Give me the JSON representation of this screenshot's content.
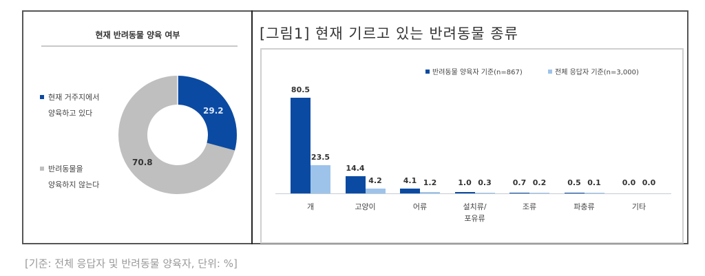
{
  "left_panel": {
    "title": "현재 반려동물 양육 여부",
    "legend": [
      {
        "line1": "현재 거주지에서",
        "line2": "양육하고 있다",
        "color": "#0b4aa2"
      },
      {
        "line1": "반려동물을",
        "line2": "양육하지 않는다",
        "color": "#bfbfbf"
      }
    ],
    "labels": {
      "owned": "29.2",
      "not_owned": "70.8"
    }
  },
  "right_panel": {
    "title": "[그림1] 현재 기르고 있는 반려동물 종류",
    "legend": [
      {
        "label": "반려동물 양육자 기준(n=867)",
        "color": "#0b4aa2"
      },
      {
        "label": "전체 응답자 기준(n=3,000)",
        "color": "#9dc3ea"
      }
    ]
  },
  "footnote": "[기준: 전체 응답자 및 반려동물 양육자, 단위: %]",
  "chart_data": [
    {
      "type": "pie",
      "subtype": "donut",
      "title": "현재 반려동물 양육 여부",
      "categories": [
        "현재 거주지에서 양육하고 있다",
        "반려동물을 양육하지 않는다"
      ],
      "values": [
        29.2,
        70.8
      ],
      "colors": [
        "#0b4aa2",
        "#bfbfbf"
      ],
      "unit": "%",
      "legend_position": "left"
    },
    {
      "type": "bar",
      "title": "[그림1] 현재 기르고 있는 반려동물 종류",
      "categories": [
        "개",
        "고양이",
        "어류",
        "설치류/포유류",
        "조류",
        "파충류",
        "기타"
      ],
      "series": [
        {
          "name": "반려동물 양육자 기준(n=867)",
          "values": [
            80.5,
            14.4,
            4.1,
            1.0,
            0.7,
            0.5,
            0.0
          ],
          "color": "#0b4aa2"
        },
        {
          "name": "전체 응답자 기준(n=3,000)",
          "values": [
            23.5,
            4.2,
            1.2,
            0.3,
            0.2,
            0.1,
            0.0
          ],
          "color": "#9dc3ea"
        }
      ],
      "value_labels": {
        "s1": [
          "80.5",
          "14.4",
          "4.1",
          "1.0",
          "0.7",
          "0.5",
          "0.0"
        ],
        "s2": [
          "23.5",
          "4.2",
          "1.2",
          "0.3",
          "0.2",
          "0.1",
          "0.0"
        ]
      },
      "category_lines": [
        [
          "개"
        ],
        [
          "고양이"
        ],
        [
          "어류"
        ],
        [
          "설치류/",
          "포유류"
        ],
        [
          "조류"
        ],
        [
          "파충류"
        ],
        [
          "기타"
        ]
      ],
      "xlabel": "",
      "ylabel": "",
      "ylim": [
        0,
        100
      ],
      "unit": "%",
      "grid": false,
      "legend_position": "top-right"
    }
  ]
}
